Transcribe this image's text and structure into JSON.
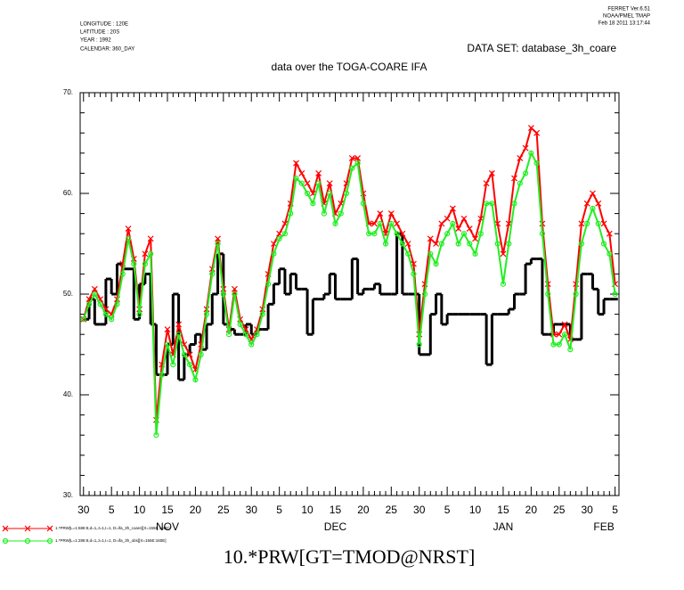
{
  "header": {
    "left": [
      "LONGITUDE : 120E",
      "LATITUDE : 20S",
      "YEAR : 1992",
      "CALENDAR: 360_DAY"
    ],
    "right": [
      "FERRET  Ver.6.51",
      "NOAA/PMEL TMAP",
      "Feb 18 2011 13:17:44"
    ]
  },
  "chart_data": {
    "type": "line",
    "dataset": "DATA SET: database_3h_coare",
    "title": "data over the TOGA-COARE IFA",
    "x_label": "10.*PRW[GT=TMOD@NRST]",
    "xlim": [
      -0.6,
      95.7
    ],
    "xticks": [
      {
        "value": 0,
        "label": "30"
      },
      {
        "value": 5,
        "label": "5"
      },
      {
        "value": 10,
        "label": "10"
      },
      {
        "value": 15,
        "label": "15"
      },
      {
        "value": 20,
        "label": "20"
      },
      {
        "value": 25,
        "label": "25"
      },
      {
        "value": 30,
        "label": "30"
      },
      {
        "value": 35,
        "label": "5"
      },
      {
        "value": 40,
        "label": "10"
      },
      {
        "value": 45,
        "label": "15"
      },
      {
        "value": 50,
        "label": "20"
      },
      {
        "value": 55,
        "label": "25"
      },
      {
        "value": 60,
        "label": "30"
      },
      {
        "value": 65,
        "label": "5"
      },
      {
        "value": 70,
        "label": "10"
      },
      {
        "value": 75,
        "label": "15"
      },
      {
        "value": 80,
        "label": "20"
      },
      {
        "value": 85,
        "label": "25"
      },
      {
        "value": 90,
        "label": "30"
      },
      {
        "value": 95,
        "label": "5"
      }
    ],
    "months": [
      {
        "value": 15,
        "label": "NOV"
      },
      {
        "value": 45,
        "label": "DEC"
      },
      {
        "value": 75,
        "label": "JAN"
      },
      {
        "value": 93,
        "label": "FEB"
      }
    ],
    "ylim": [
      30,
      70
    ],
    "yticks": [
      {
        "value": 30,
        "label": "30."
      },
      {
        "value": 40,
        "label": "40."
      },
      {
        "value": 50,
        "label": "50."
      },
      {
        "value": 60,
        "label": "60."
      },
      {
        "value": 70,
        "label": "70."
      }
    ],
    "x": [
      0,
      1,
      2,
      3,
      4,
      5,
      6,
      7,
      8,
      9,
      10,
      11,
      12,
      13,
      14,
      15,
      16,
      17,
      18,
      19,
      20,
      21,
      22,
      23,
      24,
      25,
      26,
      27,
      28,
      29,
      30,
      31,
      32,
      33,
      34,
      35,
      36,
      37,
      38,
      39,
      40,
      41,
      42,
      43,
      44,
      45,
      46,
      47,
      48,
      49,
      50,
      51,
      52,
      53,
      54,
      55,
      56,
      57,
      58,
      59,
      60,
      61,
      62,
      63,
      64,
      65,
      66,
      67,
      68,
      69,
      70,
      71,
      72,
      73,
      74,
      75,
      76,
      77,
      78,
      79,
      80,
      81,
      82,
      83,
      84,
      85,
      86,
      87,
      88,
      89,
      90,
      91,
      92,
      93,
      94,
      95
    ],
    "series": [
      {
        "color": "#000000",
        "style": "step",
        "values": [
          47.5,
          49.5,
          47,
          47,
          51.5,
          50,
          53,
          52.5,
          52.5,
          47.5,
          51,
          52,
          47,
          42,
          42,
          45,
          50,
          41.5,
          44,
          45,
          46,
          44.5,
          47,
          50,
          54,
          47,
          46.5,
          46,
          46,
          47,
          46,
          46.5,
          46.5,
          49,
          51,
          52.5,
          50,
          52,
          50.5,
          50.5,
          46,
          49.5,
          49.5,
          50,
          52,
          49.5,
          49.5,
          49.5,
          53.5,
          50,
          50.5,
          50.5,
          51,
          50,
          50,
          50,
          56,
          50,
          50,
          50,
          44,
          44,
          48,
          50,
          47,
          48,
          48,
          48,
          48,
          48,
          48,
          48,
          43,
          48,
          48,
          48,
          48.5,
          50,
          50,
          53,
          53.5,
          53.5,
          46,
          46,
          47,
          47,
          47,
          45.5,
          45.5,
          52,
          52,
          50.5,
          48,
          49.5,
          49.5,
          49.5
        ]
      },
      {
        "name": "1.*PRW[L=1:688:8,d=1,J=1,I=1, D=ifa_3h_coare][X=155E:160E]",
        "color": "#ff0000",
        "marker": "x",
        "values": [
          47.5,
          49.5,
          50.5,
          49.5,
          48.5,
          48,
          49.5,
          53,
          56.5,
          53.5,
          48.5,
          54,
          55.5,
          37.5,
          43,
          46.5,
          44,
          47,
          45,
          44,
          42.5,
          45,
          48.5,
          52.5,
          55.5,
          50.5,
          46.5,
          50.5,
          47.5,
          46.5,
          45.5,
          46.5,
          48.5,
          52,
          55,
          56,
          57,
          59,
          63,
          62,
          61,
          60,
          62,
          59,
          61,
          58,
          59,
          61,
          63.5,
          63.5,
          60,
          57,
          57,
          58,
          56,
          58,
          57,
          56,
          55,
          53,
          46,
          51,
          55.5,
          55,
          57,
          57.5,
          58.5,
          56.5,
          57.5,
          56.5,
          55.5,
          57.5,
          61,
          62,
          57,
          54,
          57,
          61.5,
          63.5,
          64.5,
          66.5,
          66,
          57,
          51,
          46,
          46,
          47,
          45.5,
          51,
          57,
          59,
          60,
          59,
          57,
          56,
          51
        ]
      },
      {
        "name": "1.*PRW[L=1:288:8,d=1,J=1,I=1, D=ifa_3h_obs][X=155E:160E]",
        "color": "#22ee22",
        "marker": "o",
        "values": [
          47.5,
          49,
          50,
          49,
          48,
          47.5,
          49,
          52,
          55.5,
          53,
          48,
          53,
          54,
          36,
          42,
          45,
          43,
          46,
          44,
          43,
          41.5,
          44,
          48,
          52,
          55,
          50,
          46,
          50,
          47,
          46,
          45,
          46,
          48,
          51,
          54,
          55.5,
          56,
          58,
          61.5,
          61,
          60,
          59,
          61,
          58,
          60,
          57,
          58,
          60,
          62.5,
          63,
          59,
          56,
          56,
          57,
          55,
          57,
          56,
          55,
          54,
          52,
          45,
          50,
          54,
          53,
          55,
          56,
          57,
          55,
          56,
          55,
          54,
          56,
          59,
          59,
          55,
          51,
          55,
          59,
          61,
          62,
          64,
          63,
          56,
          50,
          45,
          45,
          46,
          44.5,
          50,
          55,
          57,
          58.5,
          57,
          55,
          54,
          50
        ]
      }
    ]
  }
}
